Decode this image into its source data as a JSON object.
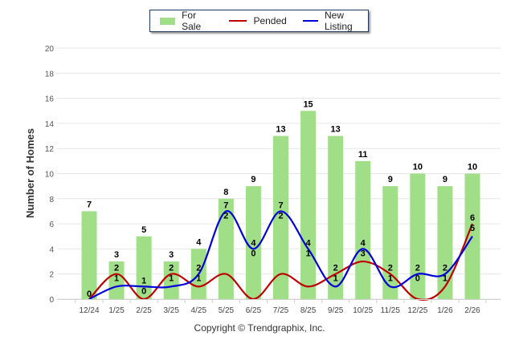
{
  "chart_data": {
    "type": "bar",
    "title": "",
    "xlabel": "",
    "ylabel": "Number of Homes",
    "ylim": [
      0,
      20
    ],
    "yticks": [
      0,
      2,
      4,
      6,
      8,
      10,
      12,
      14,
      16,
      18,
      20
    ],
    "grid": true,
    "legend_position": "top-center",
    "categories": [
      "12/24",
      "1/25",
      "2/25",
      "3/25",
      "4/25",
      "5/25",
      "6/25",
      "7/25",
      "8/25",
      "9/25",
      "10/25",
      "11/25",
      "12/25",
      "1/26",
      "2/26"
    ],
    "series": [
      {
        "name": "For Sale",
        "type": "bar",
        "color": "#a0de88",
        "values": [
          7,
          3,
          5,
          3,
          4,
          8,
          9,
          13,
          15,
          13,
          11,
          9,
          10,
          9,
          10
        ]
      },
      {
        "name": "Pended",
        "type": "line",
        "color": "#c00000",
        "values": [
          0,
          2,
          0,
          2,
          1,
          2,
          0,
          2,
          1,
          2,
          3,
          2,
          0,
          1,
          6
        ]
      },
      {
        "name": "New Listing",
        "type": "line",
        "color": "#0000dd",
        "values": [
          0,
          1,
          1,
          1,
          2,
          7,
          4,
          7,
          4,
          1,
          4,
          1,
          2,
          2,
          5
        ]
      }
    ]
  },
  "legend": {
    "items": [
      {
        "label": "For Sale",
        "color": "#a0de88"
      },
      {
        "label": "Pended",
        "color": "#c00000"
      },
      {
        "label": "New Listing",
        "color": "#0000dd"
      }
    ]
  },
  "footer": {
    "copyright": "Copyright © Trendgraphix, Inc."
  }
}
